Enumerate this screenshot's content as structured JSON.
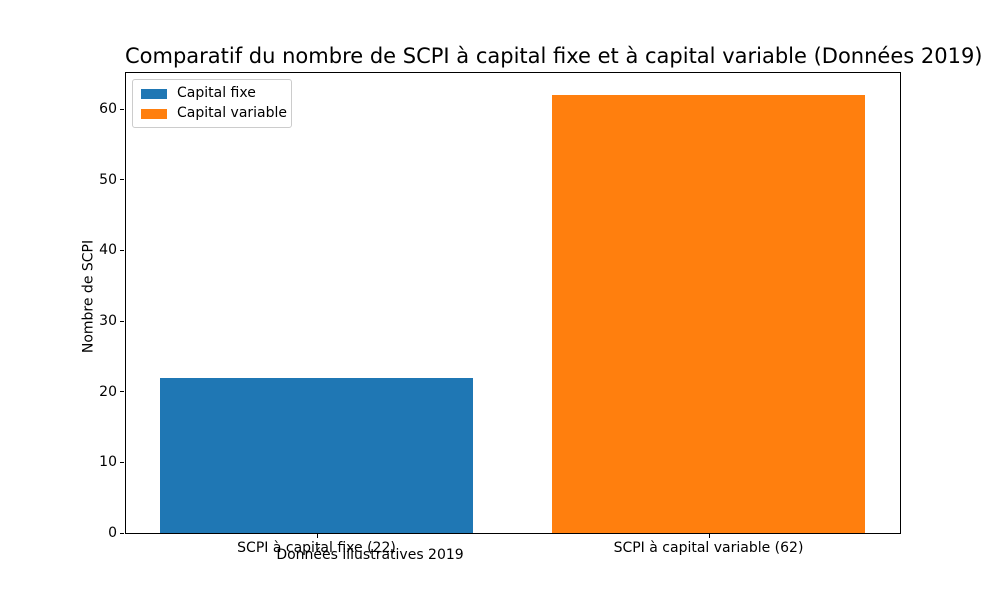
{
  "figure": {
    "background": "#ffffff",
    "frame_color": "#000000"
  },
  "chart_data": {
    "type": "bar",
    "title": "Comparatif du nombre de SCPI à capital fixe et à capital variable (Données 2019)",
    "xlabel": "Données illustratives 2019",
    "ylabel": "Nombre de SCPI",
    "categories": [
      "SCPI à capital fixe (22)",
      "SCPI à capital variable (62)"
    ],
    "values": [
      22,
      62
    ],
    "bar_colors": [
      "#1f77b4",
      "#ff7f0e"
    ],
    "yticks": [
      0,
      10,
      20,
      30,
      40,
      50,
      60
    ],
    "ylim": [
      0,
      65.1
    ],
    "grid": false,
    "legend": {
      "position": "upper left",
      "entries": [
        {
          "label": "Capital fixe",
          "color": "#1f77b4"
        },
        {
          "label": "Capital variable",
          "color": "#ff7f0e"
        }
      ]
    }
  }
}
